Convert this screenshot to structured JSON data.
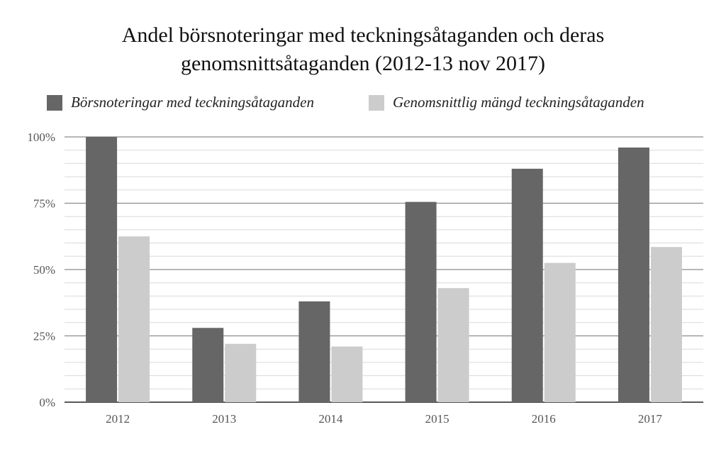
{
  "title_line1": "Andel börsnoteringar med teckningsåtaganden och deras",
  "title_line2": "genomsnittsåtaganden (2012-13 nov 2017)",
  "chart_data": {
    "type": "bar",
    "categories": [
      "2012",
      "2013",
      "2014",
      "2015",
      "2016",
      "2017"
    ],
    "series": [
      {
        "name": "Börsnoteringar med teckningsåtaganden",
        "values": [
          100,
          28,
          38,
          75.5,
          88,
          96
        ],
        "color": "#666666"
      },
      {
        "name": "Genomsnittlig mängd teckningsåtaganden",
        "values": [
          62.5,
          22,
          21,
          43,
          52.5,
          58.5
        ],
        "color": "#cccccc"
      }
    ],
    "yticks": [
      "0%",
      "25%",
      "50%",
      "75%",
      "100%"
    ],
    "ylim": [
      0,
      100
    ],
    "grid": true,
    "legend_position": "top"
  }
}
